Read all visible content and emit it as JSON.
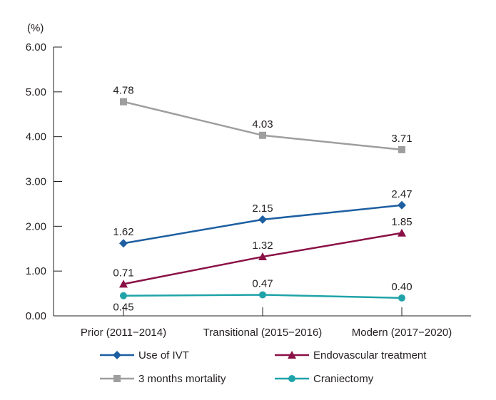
{
  "chart_data": {
    "type": "line",
    "title": "",
    "ylabel": "(%)",
    "xlabel": "",
    "ylim": [
      0,
      6
    ],
    "yticks": [
      "0.00",
      "1.00",
      "2.00",
      "3.00",
      "4.00",
      "5.00",
      "6.00"
    ],
    "categories": [
      "Prior (2011−2014)",
      "Transitional (2015−2016)",
      "Modern (2017−2020)"
    ],
    "series": [
      {
        "name": "Use of IVT",
        "values": [
          1.62,
          2.15,
          2.47
        ],
        "labels": [
          "1.62",
          "2.15",
          "2.47"
        ],
        "color": "#1d5fa1",
        "marker": "diamond",
        "label_pos": "above"
      },
      {
        "name": "Endovascular treatment",
        "values": [
          0.71,
          1.32,
          1.85
        ],
        "labels": [
          "0.71",
          "1.32",
          "1.85"
        ],
        "color": "#8a1046",
        "marker": "triangle",
        "label_pos": "above"
      },
      {
        "name": "3 months mortality",
        "values": [
          4.78,
          4.03,
          3.71
        ],
        "labels": [
          "4.78",
          "4.03",
          "3.71"
        ],
        "color": "#9e9e9e",
        "marker": "square",
        "label_pos": "above"
      },
      {
        "name": "Craniectomy",
        "values": [
          0.45,
          0.47,
          0.4
        ],
        "labels": [
          "0.45",
          "0.47",
          "0.40"
        ],
        "color": "#1fa3a8",
        "marker": "circle",
        "label_pos": "mixed"
      }
    ],
    "legend": {
      "position": "bottom",
      "columns": 2
    }
  }
}
